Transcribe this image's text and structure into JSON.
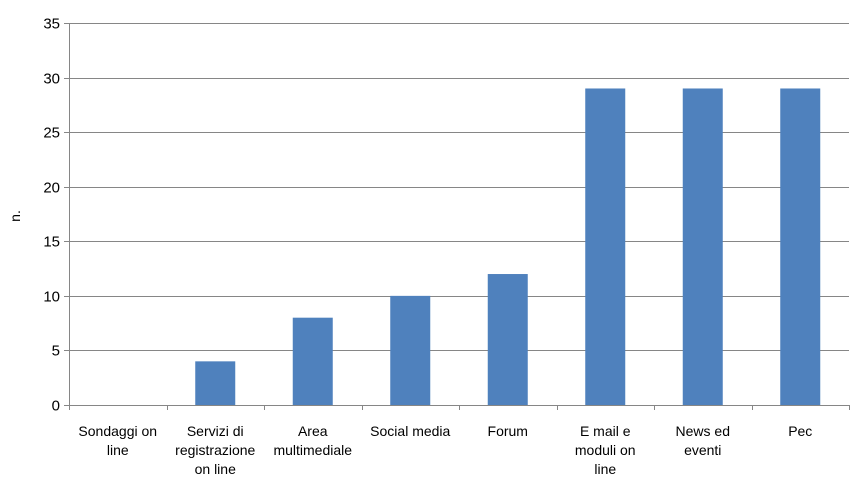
{
  "chart_data": {
    "type": "bar",
    "title": "",
    "xlabel": "",
    "ylabel": "n.",
    "ylim": [
      0,
      35
    ],
    "yticks": [
      0,
      5,
      10,
      15,
      20,
      25,
      30,
      35
    ],
    "grid": true,
    "legend": "none",
    "bar_color": "#4f81bd",
    "gridline_color": "#868686",
    "categories": [
      [
        "Sondaggi on",
        "line"
      ],
      [
        "Servizi di",
        "registrazione",
        "on line"
      ],
      [
        "Area",
        "multimediale"
      ],
      [
        "Social media"
      ],
      [
        "Forum"
      ],
      [
        "E mail e",
        "moduli on",
        "line"
      ],
      [
        "News ed",
        "eventi"
      ],
      [
        "Pec"
      ]
    ],
    "values": [
      0,
      4,
      8,
      10,
      12,
      29,
      29,
      29
    ]
  }
}
